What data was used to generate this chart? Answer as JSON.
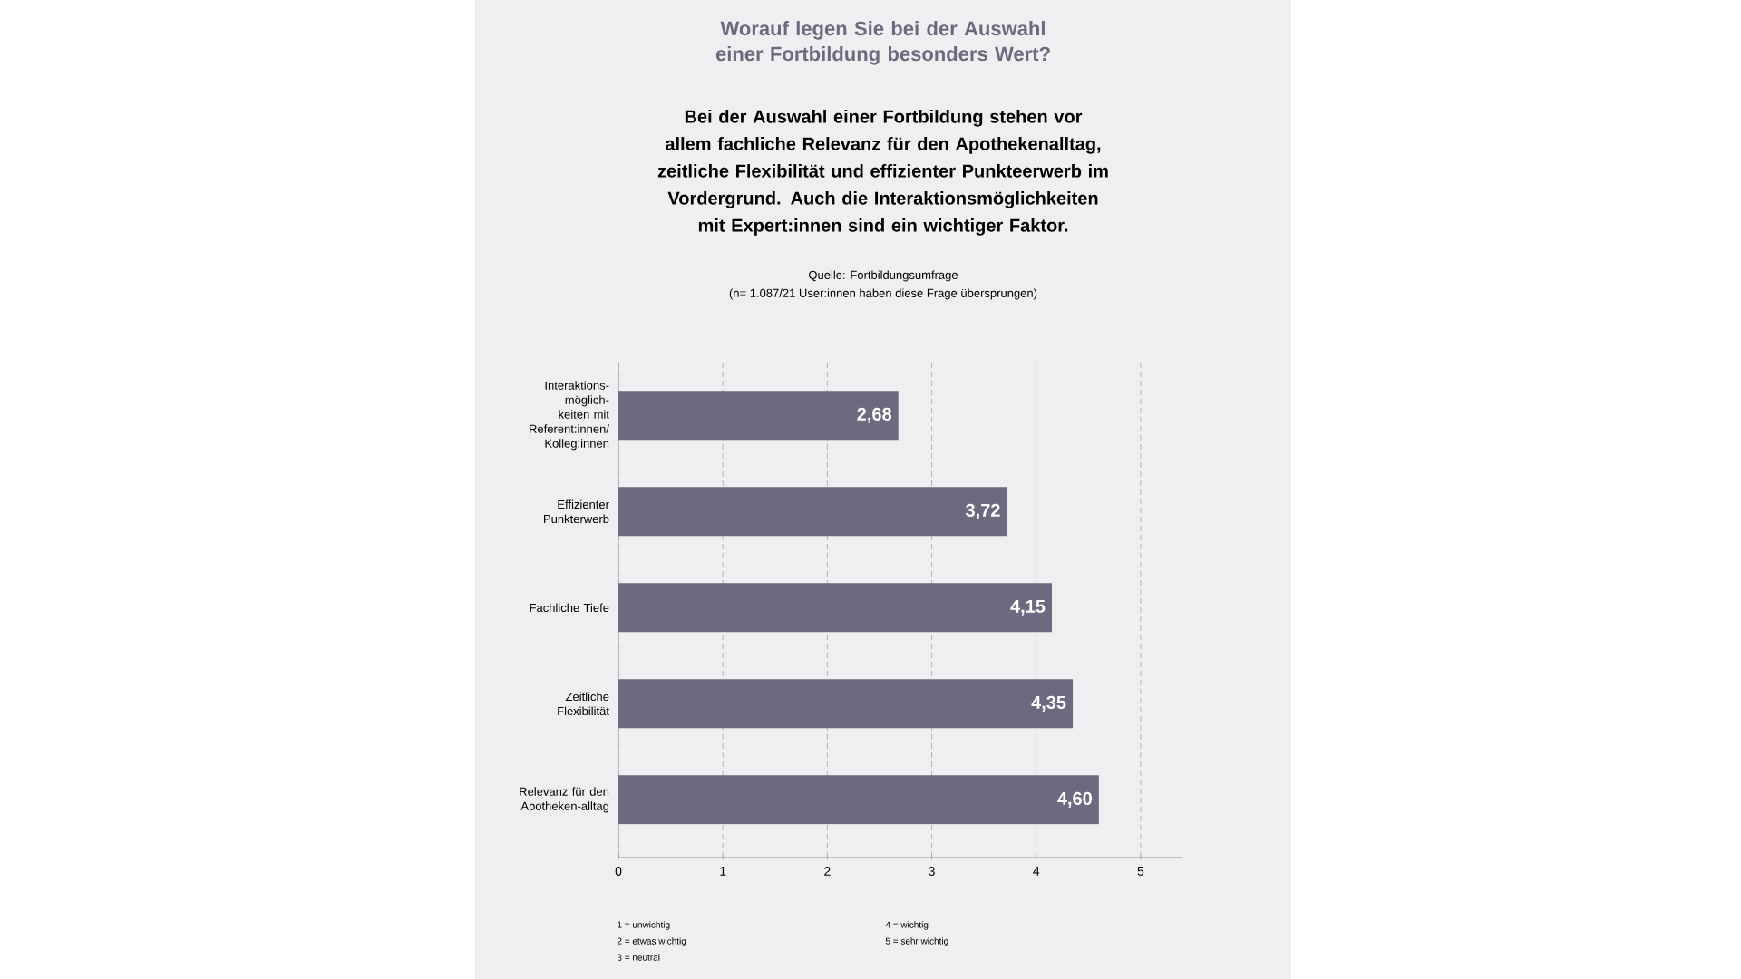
{
  "chart_data": {
    "type": "bar",
    "orientation": "horizontal",
    "title": "Worauf legen Sie bei der Auswahl einer Fortbildung besonders Wert?",
    "subtitle": "Bei der Auswahl einer Fortbildung stehen vor allem fachliche Relevanz für den Apothekenalltag, zeitliche Flexibilität und effizienter Punkteerwerb im Vordergrund. Auch die Interaktionsmöglichkeiten mit Expert:innen sind ein wichtiger Faktor.",
    "categories": [
      "Interaktions-möglich-keiten mit Referent:innen/ Kolleg:innen",
      "Effizienter Punkterwerb",
      "Fachliche Tiefe",
      "Zeitliche Flexibilität",
      "Relevanz für den Apotheken-alltag"
    ],
    "values": [
      2.68,
      3.72,
      4.15,
      4.35,
      4.6
    ],
    "value_labels": [
      "2,68",
      "3,72",
      "4,15",
      "4,35",
      "4,60"
    ],
    "color": "#6b6a7e",
    "xlim": [
      0,
      5.4
    ],
    "xticks": [
      0,
      1,
      2,
      3,
      4,
      5
    ],
    "grid": "x",
    "annotations": [
      "Quelle: Fortbildungsumfrage",
      "(n= 1.087/21 User:innen haben diese Frage übersprungen)",
      "1 = unwichtig",
      "2 = etwas wichtig",
      "3 = neutral",
      "4 = wichtig",
      "5 = sehr wichtig"
    ]
  }
}
